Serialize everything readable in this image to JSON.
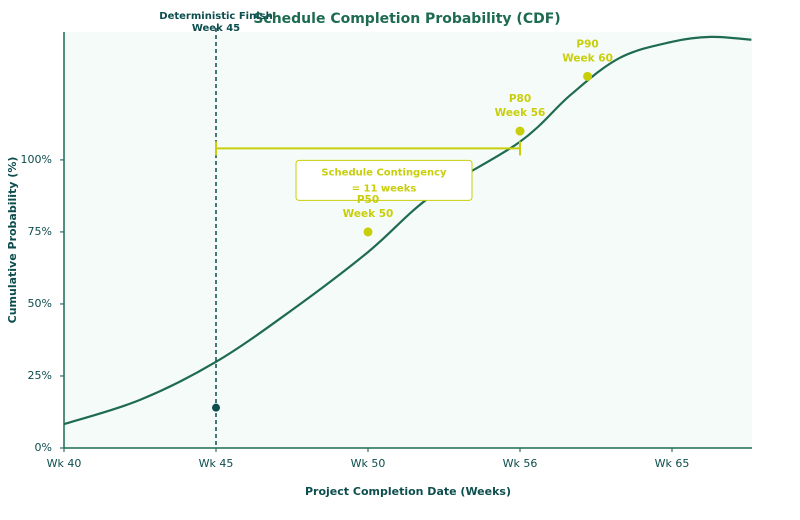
{
  "chart_data": {
    "type": "line",
    "title": "Schedule Completion Probability (CDF)",
    "x_label": "Project Completion Date (Weeks)",
    "y_label": "Cumulative Probability (%)",
    "x": [
      40,
      42.5,
      45,
      47.5,
      50,
      52.5,
      56,
      59,
      61.9,
      65,
      67.3,
      69.7
    ],
    "series": [
      {
        "name": "CDF",
        "color": "#1e6b52",
        "values": [
          8.3,
          16.7,
          29.9,
          47.9,
          68,
          87.5,
          106.3,
          122.6,
          135.4,
          141,
          142.7,
          141.7
        ]
      }
    ],
    "xlim": [
      40,
      69.7
    ],
    "xticks": [
      {
        "value": 40,
        "label": "Wk 40"
      },
      {
        "value": 45,
        "label": "Wk 45"
      },
      {
        "value": 50,
        "label": "Wk 50"
      },
      {
        "value": 56,
        "label": "Wk 56"
      },
      {
        "value": 65,
        "label": "Wk 65"
      }
    ],
    "ylim": [
      0,
      144.4
    ],
    "yticks": [
      {
        "value": 0,
        "label": "0%"
      },
      {
        "value": 25,
        "label": "25%"
      },
      {
        "value": 50,
        "label": "50%"
      },
      {
        "value": 75,
        "label": "75%"
      },
      {
        "value": 100,
        "label": "100%"
      }
    ],
    "markers": [
      {
        "name": "P50",
        "label": "Week 50",
        "x": 50,
        "y": 75
      },
      {
        "name": "P80",
        "label": "Week 56",
        "x": 56,
        "y": 110
      },
      {
        "name": "P90",
        "label": "Week 60",
        "x": 60,
        "y": 129
      }
    ],
    "marker_color": "#c8cf0a",
    "deterministic": {
      "name": "Deterministic Finish",
      "label": "Week 45",
      "x": 45,
      "y": 14,
      "color": "#0d4d4d"
    },
    "contingency": {
      "start": 45,
      "end": 56,
      "level": 104,
      "lines": [
        "Schedule Contingency",
        "= 11 weeks"
      ]
    }
  }
}
